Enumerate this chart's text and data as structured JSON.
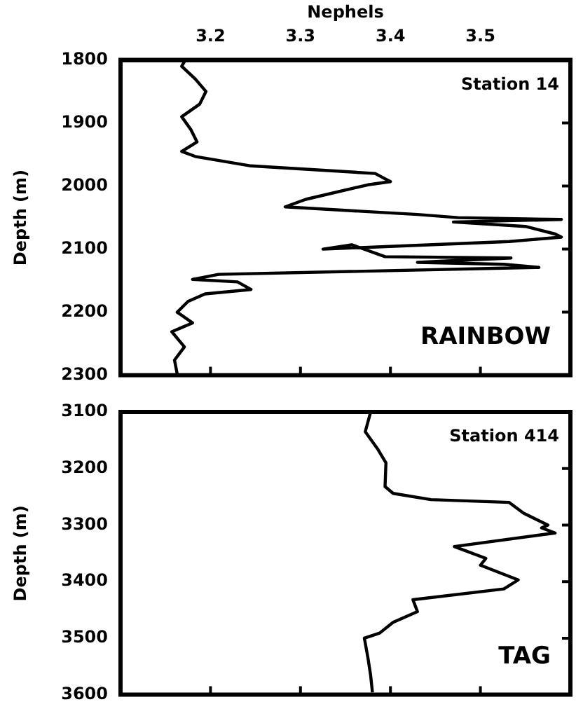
{
  "chart_data": [
    {
      "type": "line",
      "xlabel": "Nephels",
      "ylabel": "Depth (m)",
      "annotations": [
        "Station 14",
        "RAINBOW"
      ],
      "xlim": [
        3.1,
        3.6
      ],
      "xticks": [
        3.2,
        3.3,
        3.4,
        3.5
      ],
      "ylim": [
        2300,
        1800
      ],
      "yticks": [
        1800,
        1900,
        2000,
        2100,
        2200,
        2300
      ],
      "grid": false,
      "legend": false,
      "marker": "none",
      "line_style": "solid",
      "series": [
        {
          "color": "#000000",
          "x": [
            3.172,
            3.168,
            3.183,
            3.195,
            3.188,
            3.168,
            3.178,
            3.185,
            3.168,
            3.183,
            3.245,
            3.383,
            3.4,
            3.375,
            3.306,
            3.283,
            3.43,
            3.475,
            3.59,
            3.47,
            3.55,
            3.583,
            3.59,
            3.532,
            3.325,
            3.357,
            3.394,
            3.534,
            3.43,
            3.526,
            3.565,
            3.209,
            3.18,
            3.23,
            3.245,
            3.194,
            3.175,
            3.163,
            3.18,
            3.157,
            3.171,
            3.16,
            3.163
          ],
          "values": [
            1800,
            1810,
            1830,
            1850,
            1870,
            1890,
            1910,
            1930,
            1945,
            1953,
            1968,
            1980,
            1993,
            1998,
            2021,
            2033,
            2045,
            2050,
            2053,
            2057,
            2064,
            2076,
            2081,
            2088,
            2100,
            2093,
            2112,
            2114,
            2121,
            2124,
            2129,
            2140,
            2148,
            2152,
            2164,
            2171,
            2183,
            2200,
            2217,
            2231,
            2255,
            2276,
            2298
          ]
        }
      ]
    },
    {
      "type": "line",
      "ylabel": "Depth (m)",
      "annotations": [
        "Station 414",
        "TAG"
      ],
      "xlim": [
        3.1,
        3.6
      ],
      "xticks": [
        3.2,
        3.3,
        3.4,
        3.5
      ],
      "ylim": [
        3600,
        3100
      ],
      "yticks": [
        3100,
        3200,
        3300,
        3400,
        3500,
        3600
      ],
      "tick_labels": "y",
      "grid": false,
      "legend": false,
      "marker": "none",
      "line_style": "solid",
      "series": [
        {
          "color": "#000000",
          "x": [
            3.378,
            3.372,
            3.386,
            3.395,
            3.394,
            3.403,
            3.445,
            3.532,
            3.548,
            3.575,
            3.568,
            3.583,
            3.471,
            3.506,
            3.5,
            3.542,
            3.526,
            3.425,
            3.43,
            3.403,
            3.388,
            3.371,
            3.375,
            3.378,
            3.38
          ],
          "values": [
            3100,
            3135,
            3166,
            3190,
            3232,
            3244,
            3255,
            3260,
            3279,
            3300,
            3305,
            3314,
            3338,
            3359,
            3371,
            3397,
            3413,
            3432,
            3453,
            3472,
            3491,
            3500,
            3535,
            3566,
            3596
          ]
        }
      ]
    }
  ]
}
